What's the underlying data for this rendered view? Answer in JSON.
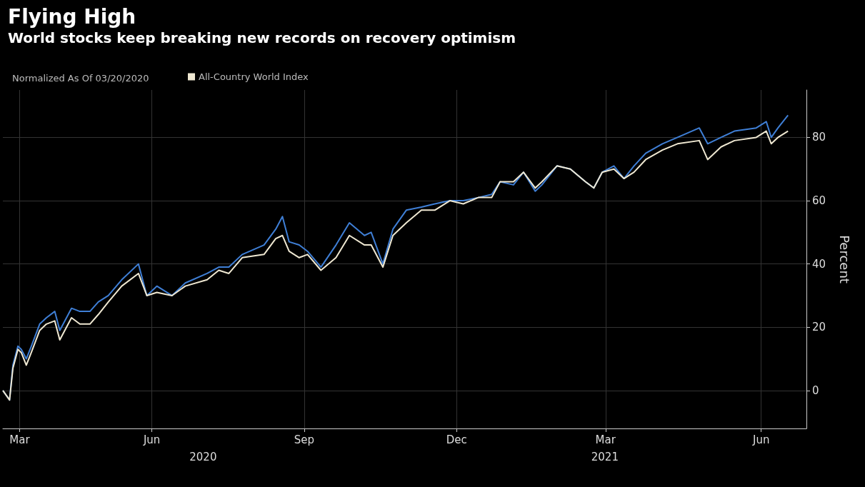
{
  "chart_data": {
    "type": "line",
    "title": "Flying High",
    "subtitle": "World stocks keep breaking new records on recovery optimism",
    "legend_title": "Normalized As Of 03/20/2020",
    "ylabel": "Percent",
    "x": [
      "2020-03-20",
      "2020-03-24",
      "2020-03-26",
      "2020-03-29",
      "2020-03-31",
      "2020-04-03",
      "2020-04-06",
      "2020-04-11",
      "2020-04-15",
      "2020-04-20",
      "2020-04-23",
      "2020-04-30",
      "2020-05-05",
      "2020-05-11",
      "2020-05-16",
      "2020-05-22",
      "2020-05-30",
      "2020-06-09",
      "2020-06-14",
      "2020-06-20",
      "2020-06-29",
      "2020-07-07",
      "2020-07-20",
      "2020-07-27",
      "2020-08-02",
      "2020-08-10",
      "2020-08-23",
      "2020-08-30",
      "2020-09-03",
      "2020-09-07",
      "2020-09-13",
      "2020-09-18",
      "2020-09-26",
      "2020-10-05",
      "2020-10-13",
      "2020-10-22",
      "2020-10-26",
      "2020-11-02",
      "2020-11-08",
      "2020-11-16",
      "2020-11-25",
      "2020-12-03",
      "2020-12-12",
      "2020-12-20",
      "2020-12-29",
      "2021-01-06",
      "2021-01-11",
      "2021-01-19",
      "2021-01-25",
      "2021-02-01",
      "2021-02-05",
      "2021-02-14",
      "2021-02-22",
      "2021-03-03",
      "2021-03-08",
      "2021-03-13",
      "2021-03-20",
      "2021-03-26",
      "2021-04-01",
      "2021-04-08",
      "2021-04-18",
      "2021-04-27",
      "2021-05-10",
      "2021-05-15",
      "2021-05-23",
      "2021-05-31",
      "2021-06-13",
      "2021-06-19",
      "2021-06-22",
      "2021-06-26",
      "2021-07-02"
    ],
    "series": [
      {
        "name": "All-Country World Index",
        "color": "#efe8d2",
        "values": [
          0,
          -3,
          7,
          13,
          12,
          8,
          12,
          19,
          21,
          22,
          16,
          23,
          21,
          21,
          24,
          28,
          33,
          37,
          30,
          31,
          30,
          33,
          35,
          38,
          37,
          42,
          43,
          48,
          49,
          44,
          42,
          43,
          38,
          42,
          49,
          46,
          46,
          39,
          49,
          53,
          57,
          57,
          60,
          59,
          61,
          61,
          66,
          66,
          69,
          64,
          66,
          71,
          70,
          66,
          64,
          69,
          70,
          67,
          69,
          73,
          76,
          78,
          79,
          73,
          77,
          79,
          80,
          82,
          78,
          80,
          82
        ]
      },
      {
        "color": "#3f7fd6",
        "values": [
          0,
          -3,
          8,
          14,
          13,
          10,
          14,
          21,
          23,
          25,
          19,
          26,
          25,
          25,
          28,
          30,
          35,
          40,
          30,
          33,
          30,
          34,
          37,
          39,
          39,
          43,
          46,
          51,
          55,
          47,
          46,
          44,
          39,
          46,
          53,
          49,
          50,
          40,
          51,
          57,
          58,
          59,
          60,
          60,
          61,
          62,
          66,
          65,
          69,
          63,
          65,
          71,
          70,
          66,
          64,
          69,
          71,
          67,
          71,
          75,
          78,
          80,
          83,
          78,
          80,
          82,
          83,
          85,
          80,
          83,
          87
        ]
      }
    ],
    "xlim": [
      "2020-03-20",
      "2021-07-13"
    ],
    "xticks": [
      {
        "value": "2020-03-30",
        "label": "Mar"
      },
      {
        "value": "2020-06-17",
        "label": "Jun"
      },
      {
        "value": "2020-09-16",
        "label": "Sep"
      },
      {
        "value": "2020-12-16",
        "label": "Dec"
      },
      {
        "value": "2021-03-15",
        "label": "Mar"
      },
      {
        "value": "2021-06-16",
        "label": "Jun"
      }
    ],
    "ylim": [
      -12,
      95
    ],
    "yticks": [
      0,
      20,
      40,
      60,
      80
    ],
    "annotations": [
      "2020",
      "2021"
    ],
    "grid": true,
    "legend": "top left",
    "marker": "none",
    "line_style": "solid"
  }
}
